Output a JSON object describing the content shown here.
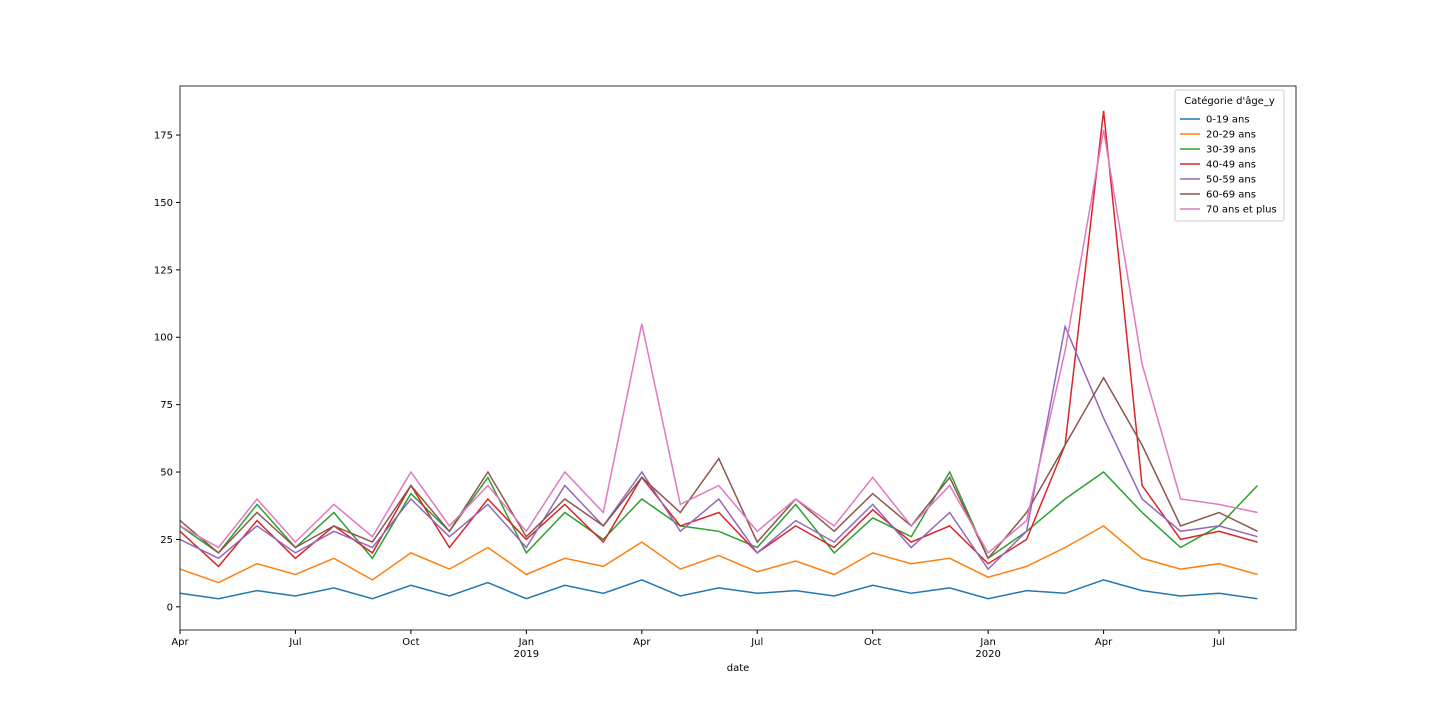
{
  "chart_data": {
    "type": "line",
    "xlabel": "date",
    "legend_title": "Catégorie d'âge_y",
    "legend": "upper right",
    "x": [
      "2018-04",
      "2018-05",
      "2018-06",
      "2018-07",
      "2018-08",
      "2018-09",
      "2018-10",
      "2018-11",
      "2018-12",
      "2019-01",
      "2019-02",
      "2019-03",
      "2019-04",
      "2019-05",
      "2019-06",
      "2019-07",
      "2019-08",
      "2019-09",
      "2019-10",
      "2019-11",
      "2019-12",
      "2020-01",
      "2020-02",
      "2020-03",
      "2020-04",
      "2020-05",
      "2020-06",
      "2020-07",
      "2020-08"
    ],
    "xlim": [
      "2018-04",
      "2020-09"
    ],
    "xticks": [
      {
        "value": "2018-04",
        "label": "Apr"
      },
      {
        "value": "2018-07",
        "label": "Jul"
      },
      {
        "value": "2018-10",
        "label": "Oct"
      },
      {
        "value": "2019-01",
        "label": "Jan",
        "year": "2019"
      },
      {
        "value": "2019-04",
        "label": "Apr"
      },
      {
        "value": "2019-07",
        "label": "Jul"
      },
      {
        "value": "2019-10",
        "label": "Oct"
      },
      {
        "value": "2020-01",
        "label": "Jan",
        "year": "2020"
      },
      {
        "value": "2020-04",
        "label": "Apr"
      },
      {
        "value": "2020-07",
        "label": "Jul"
      }
    ],
    "ylim": [
      -8.6,
      193.2
    ],
    "yticks": [
      0,
      25,
      50,
      75,
      100,
      125,
      150,
      175
    ],
    "series": [
      {
        "name": "0-19 ans",
        "color": "#1f77b4",
        "values": [
          5,
          3,
          6,
          4,
          7,
          3,
          8,
          4,
          9,
          3,
          8,
          5,
          10,
          4,
          7,
          5,
          6,
          4,
          8,
          5,
          7,
          3,
          6,
          5,
          10,
          6,
          4,
          5,
          3
        ]
      },
      {
        "name": "20-29 ans",
        "color": "#ff7f0e",
        "values": [
          14,
          9,
          16,
          12,
          18,
          10,
          20,
          14,
          22,
          12,
          18,
          15,
          24,
          14,
          19,
          13,
          17,
          12,
          20,
          16,
          18,
          11,
          15,
          22,
          30,
          18,
          14,
          16,
          12
        ]
      },
      {
        "name": "30-39 ans",
        "color": "#2ca02c",
        "values": [
          30,
          20,
          38,
          22,
          35,
          18,
          42,
          28,
          48,
          20,
          35,
          25,
          40,
          30,
          28,
          22,
          38,
          20,
          33,
          26,
          50,
          18,
          28,
          40,
          50,
          35,
          22,
          30,
          45
        ]
      },
      {
        "name": "40-49 ans",
        "color": "#d62728",
        "values": [
          28,
          15,
          32,
          18,
          30,
          20,
          45,
          22,
          40,
          25,
          38,
          24,
          48,
          30,
          35,
          20,
          30,
          22,
          36,
          24,
          30,
          16,
          25,
          60,
          184,
          45,
          25,
          28,
          24
        ]
      },
      {
        "name": "50-59 ans",
        "color": "#9467bd",
        "values": [
          25,
          18,
          30,
          20,
          28,
          22,
          40,
          26,
          38,
          22,
          45,
          30,
          50,
          28,
          40,
          20,
          32,
          24,
          38,
          22,
          35,
          14,
          28,
          104,
          70,
          40,
          28,
          30,
          26
        ]
      },
      {
        "name": "60-69 ans",
        "color": "#8c564b",
        "values": [
          32,
          20,
          35,
          22,
          30,
          24,
          45,
          28,
          50,
          26,
          40,
          30,
          48,
          35,
          55,
          24,
          40,
          28,
          42,
          30,
          48,
          18,
          35,
          60,
          85,
          60,
          30,
          35,
          28
        ]
      },
      {
        "name": "70 ans et plus",
        "color": "#e377c2",
        "values": [
          30,
          22,
          40,
          24,
          38,
          26,
          50,
          30,
          45,
          28,
          50,
          35,
          105,
          38,
          45,
          28,
          40,
          30,
          48,
          30,
          45,
          20,
          32,
          95,
          177,
          90,
          40,
          38,
          35
        ]
      }
    ]
  }
}
